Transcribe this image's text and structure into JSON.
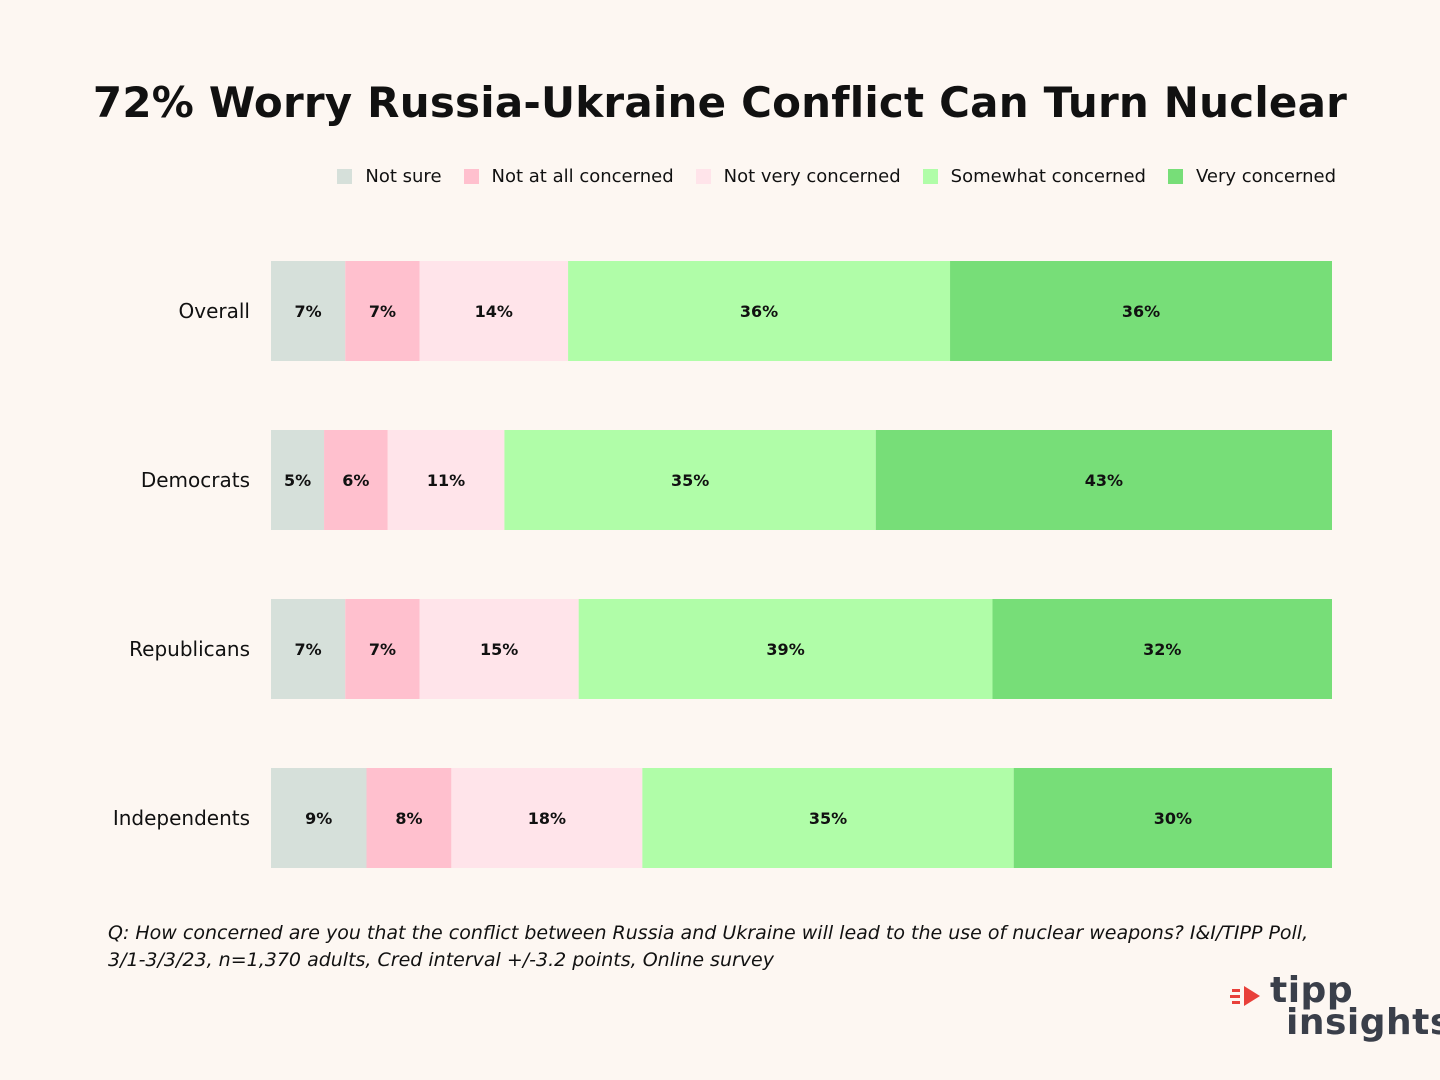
{
  "title": "72% Worry Russia-Ukraine Conflict Can Turn Nuclear",
  "footnote": "Q:  How concerned are you that the conflict between Russia and Ukraine will lead to the use of nuclear weapons? I&I/TIPP Poll, 3/1-3/3/23, n=1,370 adults, Cred interval +/-3.2 points, Online survey",
  "logo": {
    "line1": "tipp",
    "line2": "insights"
  },
  "colors": {
    "background": "#fdf7f2",
    "not_sure": "#d6e0da",
    "not_at_all": "#ffc0ce",
    "not_very": "#ffe4ea",
    "somewhat": "#b0fda8",
    "very": "#77de78",
    "logo_accent": "#e8403a"
  },
  "chart_data": {
    "type": "bar",
    "orientation": "horizontal",
    "stacked": true,
    "title": "72% Worry Russia-Ukraine Conflict Can Turn Nuclear",
    "categories": [
      "Overall",
      "Democrats",
      "Republicans",
      "Independents"
    ],
    "series": [
      {
        "name": "Not sure",
        "color": "#d6e0da",
        "values": [
          7,
          5,
          7,
          9
        ]
      },
      {
        "name": "Not at all concerned",
        "color": "#ffc0ce",
        "values": [
          7,
          6,
          7,
          8
        ]
      },
      {
        "name": "Not very concerned",
        "color": "#ffe4ea",
        "values": [
          14,
          11,
          15,
          18
        ]
      },
      {
        "name": "Somewhat concerned",
        "color": "#b0fda8",
        "values": [
          36,
          35,
          39,
          35
        ]
      },
      {
        "name": "Very concerned",
        "color": "#77de78",
        "values": [
          36,
          43,
          32,
          30
        ]
      }
    ],
    "value_suffix": "%",
    "xlabel": "",
    "ylabel": "",
    "legend_position": "top-right",
    "grid": false
  }
}
